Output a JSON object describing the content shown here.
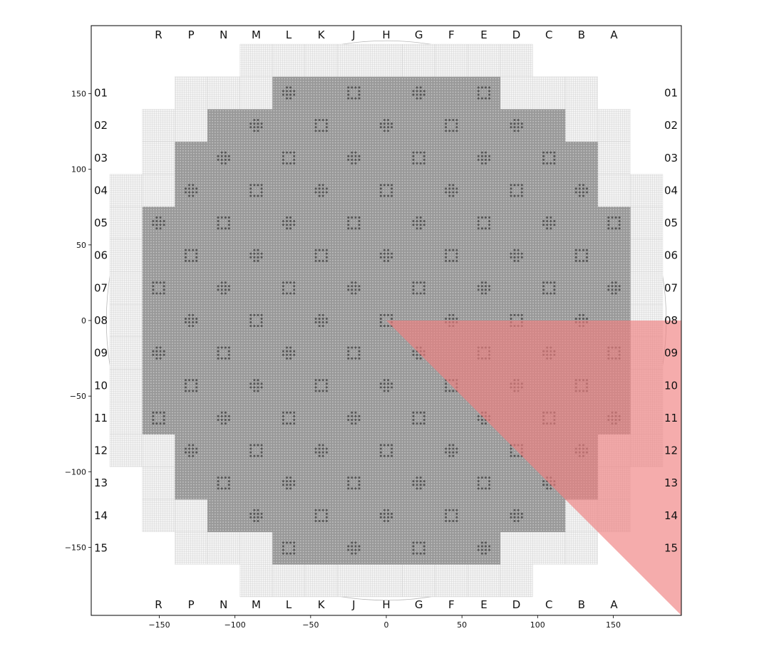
{
  "chart_data": {
    "type": "scatter",
    "title": "",
    "xlabel": "",
    "ylabel": "",
    "xlim": [
      -195,
      195
    ],
    "ylim": [
      -195,
      195
    ],
    "xticks": [
      -150,
      -100,
      -50,
      0,
      50,
      100,
      150
    ],
    "yticks": [
      150,
      100,
      50,
      0,
      -50,
      -100,
      -150
    ],
    "column_labels": [
      "R",
      "P",
      "N",
      "M",
      "L",
      "K",
      "J",
      "H",
      "G",
      "F",
      "E",
      "D",
      "C",
      "B",
      "A"
    ],
    "row_labels": [
      "01",
      "02",
      "03",
      "04",
      "05",
      "06",
      "07",
      "08",
      "09",
      "10",
      "11",
      "12",
      "13",
      "14",
      "15"
    ],
    "core_rows": [
      {
        "row": "01",
        "cols": [
          "L",
          "K",
          "J",
          "H",
          "G",
          "F",
          "E"
        ]
      },
      {
        "row": "02",
        "cols": [
          "N",
          "M",
          "L",
          "K",
          "J",
          "H",
          "G",
          "F",
          "E",
          "D",
          "C"
        ]
      },
      {
        "row": "03",
        "cols": [
          "P",
          "N",
          "M",
          "L",
          "K",
          "J",
          "H",
          "G",
          "F",
          "E",
          "D",
          "C",
          "B"
        ]
      },
      {
        "row": "04",
        "cols": [
          "P",
          "N",
          "M",
          "L",
          "K",
          "J",
          "H",
          "G",
          "F",
          "E",
          "D",
          "C",
          "B"
        ]
      },
      {
        "row": "05",
        "cols": [
          "R",
          "P",
          "N",
          "M",
          "L",
          "K",
          "J",
          "H",
          "G",
          "F",
          "E",
          "D",
          "C",
          "B",
          "A"
        ]
      },
      {
        "row": "06",
        "cols": [
          "R",
          "P",
          "N",
          "M",
          "L",
          "K",
          "J",
          "H",
          "G",
          "F",
          "E",
          "D",
          "C",
          "B",
          "A"
        ]
      },
      {
        "row": "07",
        "cols": [
          "R",
          "P",
          "N",
          "M",
          "L",
          "K",
          "J",
          "H",
          "G",
          "F",
          "E",
          "D",
          "C",
          "B",
          "A"
        ]
      },
      {
        "row": "08",
        "cols": [
          "R",
          "P",
          "N",
          "M",
          "L",
          "K",
          "J",
          "H",
          "G",
          "F",
          "E",
          "D",
          "C",
          "B",
          "A"
        ]
      },
      {
        "row": "09",
        "cols": [
          "R",
          "P",
          "N",
          "M",
          "L",
          "K",
          "J",
          "H",
          "G",
          "F",
          "E",
          "D",
          "C",
          "B",
          "A"
        ]
      },
      {
        "row": "10",
        "cols": [
          "R",
          "P",
          "N",
          "M",
          "L",
          "K",
          "J",
          "H",
          "G",
          "F",
          "E",
          "D",
          "C",
          "B",
          "A"
        ]
      },
      {
        "row": "11",
        "cols": [
          "R",
          "P",
          "N",
          "M",
          "L",
          "K",
          "J",
          "H",
          "G",
          "F",
          "E",
          "D",
          "C",
          "B",
          "A"
        ]
      },
      {
        "row": "12",
        "cols": [
          "P",
          "N",
          "M",
          "L",
          "K",
          "J",
          "H",
          "G",
          "F",
          "E",
          "D",
          "C",
          "B"
        ]
      },
      {
        "row": "13",
        "cols": [
          "P",
          "N",
          "M",
          "L",
          "K",
          "J",
          "H",
          "G",
          "F",
          "E",
          "D",
          "C",
          "B"
        ]
      },
      {
        "row": "14",
        "cols": [
          "N",
          "M",
          "L",
          "K",
          "J",
          "H",
          "G",
          "F",
          "E",
          "D",
          "C"
        ]
      },
      {
        "row": "15",
        "cols": [
          "L",
          "K",
          "J",
          "H",
          "G",
          "F",
          "E"
        ]
      }
    ],
    "highlight_region": {
      "vertices": [
        [
          0,
          0
        ],
        [
          195,
          0
        ],
        [
          195,
          -195
        ]
      ],
      "color": "#f08080",
      "opacity": 0.65
    },
    "colors": {
      "assembly": "#9a9a9a",
      "reflector": "#e6e6e6",
      "rods": "#555555",
      "axes": "#000000"
    }
  }
}
